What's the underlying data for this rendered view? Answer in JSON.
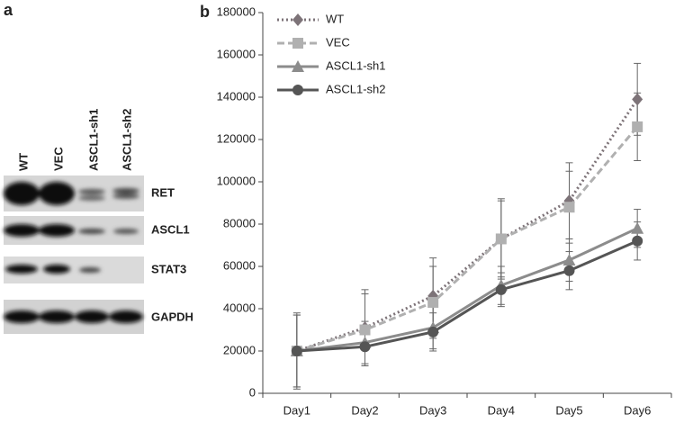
{
  "blot": {
    "panel_label": "a",
    "lanes": [
      "WT",
      "VEC",
      "ASCL1-sh1",
      "ASCL1-sh2"
    ],
    "bands": [
      "RET",
      "ASCL1",
      "STAT3",
      "GAPDH"
    ]
  },
  "chart_data": {
    "type": "line",
    "panel_label": "b",
    "categories": [
      "Day1",
      "Day2",
      "Day3",
      "Day4",
      "Day5",
      "Day6"
    ],
    "ylim": [
      0,
      180000
    ],
    "yticks": [
      0,
      20000,
      40000,
      60000,
      80000,
      100000,
      120000,
      140000,
      160000,
      180000
    ],
    "legend": "top-left",
    "series": [
      {
        "name": "WT",
        "color": "#7d7378",
        "style": "dotted",
        "marker": "diamond",
        "values": [
          20000,
          31000,
          46000,
          73000,
          91000,
          139000
        ],
        "errors": [
          18000,
          18000,
          18000,
          19000,
          18000,
          17000
        ]
      },
      {
        "name": "VEC",
        "color": "#b0b0b0",
        "style": "dashed",
        "marker": "square",
        "values": [
          20000,
          30000,
          43000,
          73000,
          88000,
          126000
        ],
        "errors": [
          17000,
          17000,
          17000,
          18000,
          17000,
          16000
        ]
      },
      {
        "name": "ASCL1-sh1",
        "color": "#8c8c8c",
        "style": "solid",
        "marker": "triangle",
        "values": [
          20000,
          24000,
          31000,
          51000,
          63000,
          78000
        ],
        "errors": [
          17000,
          10000,
          10000,
          9000,
          10000,
          9000
        ]
      },
      {
        "name": "ASCL1-sh2",
        "color": "#555555",
        "style": "solid",
        "marker": "circle",
        "values": [
          20000,
          22000,
          29000,
          49000,
          58000,
          72000
        ],
        "errors": [
          17000,
          9000,
          9000,
          8000,
          9000,
          9000
        ]
      }
    ]
  }
}
